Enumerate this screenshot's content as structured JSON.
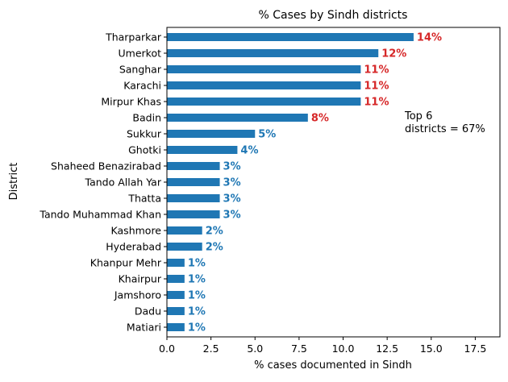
{
  "chart_data": {
    "type": "bar",
    "orientation": "horizontal",
    "title": "% Cases by Sindh districts",
    "xlabel": "% cases documented in Sindh",
    "ylabel": "District",
    "xlim": [
      0,
      18.9
    ],
    "xticks": [
      "0.0",
      "2.5",
      "5.0",
      "7.5",
      "10.0",
      "12.5",
      "15.0",
      "17.5"
    ],
    "xtick_values": [
      0,
      2.5,
      5,
      7.5,
      10,
      12.5,
      15,
      17.5
    ],
    "grid": false,
    "categories": [
      "Tharparkar",
      "Umerkot",
      "Sanghar",
      "Karachi",
      "Mirpur Khas",
      "Badin",
      "Sukkur",
      "Ghotki",
      "Shaheed Benazirabad",
      "Tando Allah Yar",
      "Thatta",
      "Tando Muhammad Khan",
      "Kashmore",
      "Hyderabad",
      "Khanpur Mehr",
      "Khairpur",
      "Jamshoro",
      "Dadu",
      "Matiari"
    ],
    "values": [
      14,
      12,
      11,
      11,
      11,
      8,
      5,
      4,
      3,
      3,
      3,
      3,
      2,
      2,
      1,
      1,
      1,
      1,
      1
    ],
    "data_labels": [
      "14%",
      "12%",
      "11%",
      "11%",
      "11%",
      "8%",
      "5%",
      "4%",
      "3%",
      "3%",
      "3%",
      "3%",
      "2%",
      "2%",
      "1%",
      "1%",
      "1%",
      "1%",
      "1%"
    ],
    "highlight_top_n": 6,
    "annotation": "Top 6\ndistricts = 67%",
    "colors": {
      "bar": "#1f77b4",
      "label_top": "#d62728",
      "label_rest": "#1f77b4",
      "axis": "#000000",
      "text": "#000000"
    }
  }
}
